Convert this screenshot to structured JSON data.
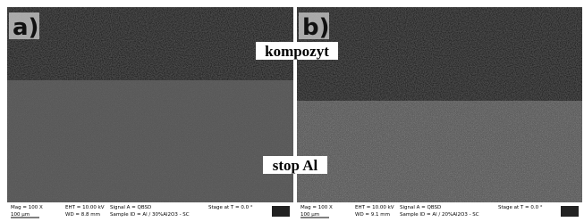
{
  "panels": [
    {
      "label": "a)",
      "footer": {
        "mag": "Mag =  100 X",
        "scale": "100 µm",
        "eht": "EHT = 10.00 kV",
        "wd": "WD =  8.8 mm",
        "signal": "Signal A = QBSD",
        "sample": "Sample ID = Al / 30%Al2O3  - SC",
        "stage": "Stage at T =  0.0 °"
      }
    },
    {
      "label": "b)",
      "footer": {
        "mag": "Mag =  100 X",
        "scale": "100 µm",
        "eht": "EHT = 10.00 kV",
        "wd": "WD =  9.1 mm",
        "signal": "Signal A = QBSD",
        "sample": "Sample ID = Al / 20%Al2O3  - SC",
        "stage": "Stage at T =  0.0 °"
      }
    }
  ],
  "annotations": {
    "top": "kompozyt",
    "bottom": "stop Al"
  }
}
